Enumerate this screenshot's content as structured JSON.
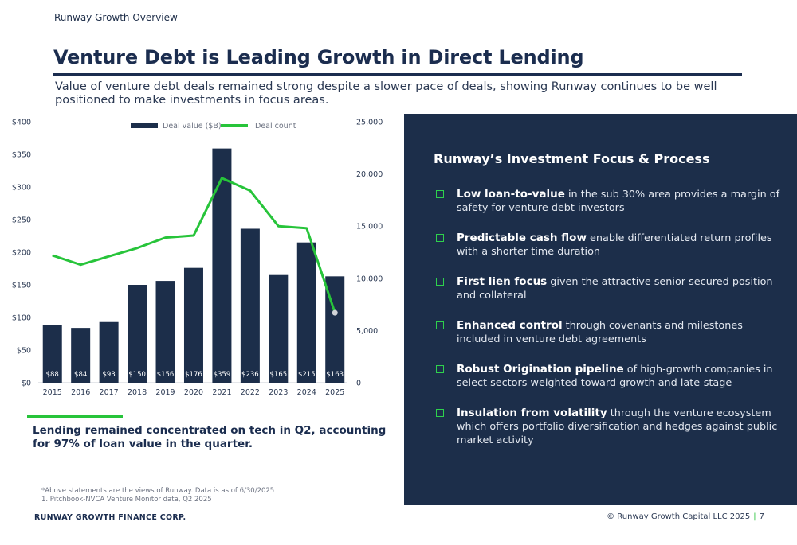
{
  "header": {
    "kicker": "Runway Growth Overview",
    "title": "Venture Debt is Leading Growth in Direct Lending",
    "subtitle": "Value of venture debt deals remained strong despite a slower pace of deals, showing Runway continues to be well positioned to make investments in focus areas."
  },
  "chart_data": {
    "type": "bar",
    "categories": [
      "2015",
      "2016",
      "2017",
      "2018",
      "2019",
      "2020",
      "2021",
      "2022",
      "2023",
      "2024",
      "2025"
    ],
    "series": [
      {
        "name": "Deal value ($B)",
        "type": "bar",
        "axis": "left",
        "color": "#1c2e4a",
        "values": [
          88,
          84,
          93,
          150,
          156,
          176,
          359,
          236,
          165,
          215,
          163
        ],
        "labels": [
          "$88",
          "$84",
          "$93",
          "$150",
          "$156",
          "$176",
          "$359",
          "$236",
          "$165",
          "$215",
          "$163"
        ]
      },
      {
        "name": "Deal count",
        "type": "line",
        "axis": "right",
        "color": "#27c43a",
        "values": [
          12200,
          11300,
          12100,
          12900,
          13900,
          14100,
          19600,
          18400,
          15000,
          14800,
          6700
        ]
      }
    ],
    "y_left": {
      "min": 0,
      "max": 400,
      "ticks": [
        0,
        50,
        100,
        150,
        200,
        250,
        300,
        350,
        400
      ],
      "tick_labels": [
        "$0",
        "$50",
        "$100",
        "$150",
        "$200",
        "$250",
        "$300",
        "$350",
        "$400"
      ]
    },
    "y_right": {
      "min": 0,
      "max": 25000,
      "ticks": [
        0,
        5000,
        10000,
        15000,
        20000,
        25000
      ],
      "tick_labels": [
        "0",
        "5,000",
        "10,000",
        "15,000",
        "20,000",
        "25,000"
      ]
    },
    "legend": "top",
    "grid": false
  },
  "panel": {
    "title": "Runway’s Investment Focus & Process",
    "items": [
      {
        "bold": "Low loan-to-value",
        "text": " in the sub 30% area provides a margin of safety for venture debt investors"
      },
      {
        "bold": "Predictable cash flow",
        "text": " enable differentiated return profiles with a shorter time duration"
      },
      {
        "bold": "First lien focus",
        "text": " given the attractive senior secured position and collateral"
      },
      {
        "bold": "Enhanced control",
        "text": " through covenants and milestones included in venture debt agreements"
      },
      {
        "bold": "Robust Origination pipeline",
        "text": " of high-growth companies in select sectors weighted toward growth and late-stage"
      },
      {
        "bold": "Insulation from volatility",
        "text": " through the venture ecosystem which offers portfolio diversification and hedges against public market activity"
      }
    ]
  },
  "takeaway": "Lending remained concentrated on tech in Q2, accounting for 97% of loan value in the quarter.",
  "notes": {
    "disclaimer": "*Above statements are the views of Runway. Data is as of 6/30/2025",
    "source": "1.   Pitchbook-NVCA Venture Monitor data, Q2 2025"
  },
  "footer": {
    "company": "RUNWAY GROWTH FINANCE CORP.",
    "copyright": "© Runway Growth Capital LLC 2025",
    "separator": "|",
    "page_number": "7"
  }
}
